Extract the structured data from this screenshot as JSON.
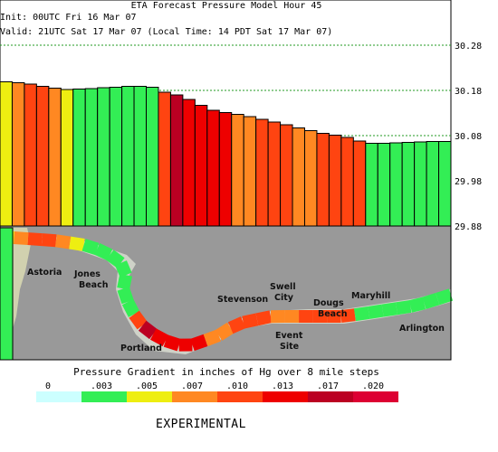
{
  "header": {
    "title": "ETA Forecast Pressure Model Hour 45",
    "init": "Init: 00UTC Fri 16 Mar 07",
    "valid": "Valid: 21UTC Sat 17 Mar 07 (Local Time: 14 PDT Sat 17 Mar 07)"
  },
  "chart_data": {
    "type": "bar",
    "title": "ETA Forecast Pressure Model Hour 45",
    "ylim": [
      29.88,
      30.32
    ],
    "y_ticks": [
      "30.28",
      "30.18",
      "30.08",
      "29.98",
      "29.88"
    ],
    "y_tick_values": [
      30.28,
      30.18,
      30.08,
      29.98,
      29.88
    ],
    "gridlines": "dotted green at each tick",
    "values": [
      30.199,
      30.197,
      30.194,
      30.189,
      30.185,
      30.182,
      30.183,
      30.184,
      30.186,
      30.187,
      30.189,
      30.189,
      30.187,
      30.176,
      30.17,
      30.16,
      30.147,
      30.136,
      30.131,
      30.127,
      30.122,
      30.116,
      30.11,
      30.104,
      30.097,
      30.091,
      30.085,
      30.081,
      30.076,
      30.068,
      30.063,
      30.063,
      30.064,
      30.065,
      30.066,
      30.067,
      30.067
    ],
    "gradient_classes": [
      2,
      3,
      4,
      4,
      3,
      2,
      1,
      1,
      1,
      1,
      1,
      1,
      1,
      4,
      6,
      5,
      5,
      5,
      5,
      3,
      3,
      4,
      4,
      4,
      3,
      3,
      4,
      4,
      4,
      4,
      1,
      1,
      1,
      1,
      1,
      1,
      1
    ],
    "legend": {
      "title": "Pressure Gradient in inches of Hg over 8 mile steps",
      "labels": [
        "0",
        ".003",
        ".005",
        ".007",
        ".010",
        ".013",
        ".017",
        ".020"
      ],
      "colors": [
        "#ccffff",
        "#33ee55",
        "#eeee11",
        "#ff8822",
        "#ff4411",
        "#ee0000",
        "#bb0022",
        "#dd0033"
      ]
    }
  },
  "map": {
    "places": [
      {
        "label": "Astoria"
      },
      {
        "label": "Jones\nBeach"
      },
      {
        "label": "Portland"
      },
      {
        "label": "Stevenson"
      },
      {
        "label": "Swell\nCity"
      },
      {
        "label": "Event\nSite"
      },
      {
        "label": "Dougs\nBeach"
      },
      {
        "label": "Maryhill"
      },
      {
        "label": "Arlington"
      }
    ],
    "land_color": "#999999",
    "water_color": "#ddffff"
  },
  "footer": {
    "experimental": "EXPERIMENTAL"
  }
}
